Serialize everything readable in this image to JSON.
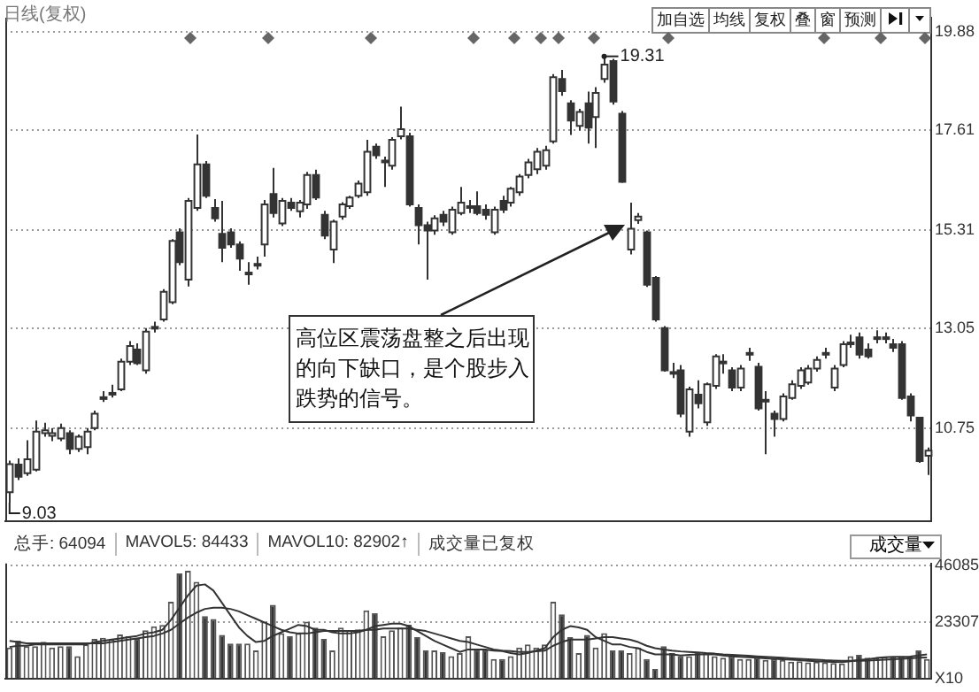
{
  "chart_data": [
    {
      "type": "candlestick",
      "title": "日线(复权)",
      "color": "#333333",
      "categories": [
        null,
        null,
        null,
        null,
        null,
        null,
        null,
        null,
        null,
        null,
        null,
        null,
        null,
        null,
        null,
        null,
        null,
        null,
        null,
        null,
        null,
        null,
        null,
        null,
        null,
        null,
        null,
        null,
        null,
        null,
        null,
        null,
        null,
        null,
        null,
        null,
        null,
        null,
        null,
        null,
        null,
        null,
        null,
        null,
        null,
        null,
        null,
        null,
        null,
        null,
        null,
        null,
        null,
        null,
        null,
        null,
        null,
        null,
        null,
        null,
        null,
        null,
        null,
        null,
        null,
        null,
        null,
        null,
        null,
        null,
        null,
        null,
        null,
        null,
        null,
        null,
        null,
        null,
        null,
        null,
        null,
        null,
        null,
        null,
        null,
        null,
        null,
        null,
        null,
        null,
        null,
        null,
        null,
        null,
        null,
        null,
        null,
        null,
        null,
        null,
        null,
        null,
        null,
        null,
        null,
        null,
        null,
        null,
        null
      ],
      "ohlc": [
        [
          9.27,
          10.0,
          9.03,
          9.92
        ],
        [
          9.91,
          10.05,
          9.55,
          9.63
        ],
        [
          9.71,
          10.47,
          9.65,
          10.03
        ],
        [
          9.79,
          10.92,
          9.75,
          10.67
        ],
        [
          10.63,
          10.87,
          10.55,
          10.7
        ],
        [
          10.57,
          10.75,
          10.45,
          10.63
        ],
        [
          10.51,
          10.85,
          10.45,
          10.75
        ],
        [
          10.63,
          10.7,
          10.15,
          10.27
        ],
        [
          10.27,
          10.6,
          10.2,
          10.55
        ],
        [
          10.31,
          10.75,
          10.15,
          10.67
        ],
        [
          10.75,
          11.15,
          10.7,
          11.08
        ],
        [
          11.42,
          11.6,
          11.35,
          11.46
        ],
        [
          11.52,
          11.75,
          11.45,
          11.56
        ],
        [
          11.64,
          12.35,
          11.6,
          12.28
        ],
        [
          12.28,
          12.75,
          12.2,
          12.64
        ],
        [
          12.56,
          12.7,
          12.2,
          12.24
        ],
        [
          12.08,
          13.05,
          12.0,
          12.97
        ],
        [
          13.04,
          13.2,
          12.95,
          13.08
        ],
        [
          13.25,
          13.95,
          13.2,
          13.89
        ],
        [
          13.65,
          15.1,
          13.6,
          15.06
        ],
        [
          15.26,
          15.35,
          14.5,
          14.57
        ],
        [
          14.17,
          16.05,
          14.01,
          15.98
        ],
        [
          15.82,
          17.51,
          15.75,
          16.82
        ],
        [
          16.82,
          16.9,
          16.05,
          16.1
        ],
        [
          15.82,
          16.02,
          15.5,
          15.58
        ],
        [
          15.22,
          15.98,
          14.57,
          14.9
        ],
        [
          15.26,
          15.35,
          14.9,
          14.98
        ],
        [
          14.98,
          15.05,
          14.37,
          14.65
        ],
        [
          14.29,
          14.57,
          14.05,
          14.33
        ],
        [
          14.49,
          14.7,
          14.4,
          14.53
        ],
        [
          14.98,
          16.0,
          14.7,
          15.9
        ],
        [
          16.14,
          16.74,
          15.6,
          15.7
        ],
        [
          15.46,
          16.05,
          15.4,
          15.98
        ],
        [
          15.94,
          16.05,
          15.75,
          15.82
        ],
        [
          15.74,
          16.0,
          15.6,
          15.94
        ],
        [
          15.9,
          16.65,
          15.8,
          16.58
        ],
        [
          16.58,
          16.7,
          16.0,
          16.06
        ],
        [
          15.66,
          15.75,
          15.1,
          15.18
        ],
        [
          14.86,
          15.55,
          14.55,
          15.5
        ],
        [
          15.62,
          15.95,
          15.55,
          15.9
        ],
        [
          15.86,
          16.1,
          15.8,
          16.06
        ],
        [
          16.1,
          16.45,
          16.05,
          16.38
        ],
        [
          16.18,
          17.39,
          16.1,
          17.11
        ],
        [
          17.23,
          17.3,
          16.95,
          17.03
        ],
        [
          16.87,
          17.0,
          16.3,
          16.91
        ],
        [
          16.79,
          17.45,
          16.7,
          17.39
        ],
        [
          17.47,
          18.15,
          17.4,
          17.63
        ],
        [
          17.47,
          17.55,
          15.85,
          15.9
        ],
        [
          15.82,
          15.9,
          14.98,
          15.42
        ],
        [
          15.42,
          15.5,
          14.17,
          15.3
        ],
        [
          15.3,
          15.65,
          15.2,
          15.58
        ],
        [
          15.66,
          15.75,
          15.4,
          15.5
        ],
        [
          15.26,
          15.85,
          15.2,
          15.78
        ],
        [
          15.7,
          16.3,
          15.65,
          15.94
        ],
        [
          15.82,
          16.0,
          15.7,
          15.86
        ],
        [
          15.86,
          16.2,
          15.65,
          15.7
        ],
        [
          15.78,
          15.9,
          15.55,
          15.66
        ],
        [
          15.26,
          15.85,
          15.2,
          15.78
        ],
        [
          15.98,
          16.1,
          15.7,
          15.78
        ],
        [
          15.94,
          16.3,
          15.85,
          16.26
        ],
        [
          16.18,
          16.6,
          16.1,
          16.54
        ],
        [
          16.58,
          16.95,
          16.5,
          16.87
        ],
        [
          16.71,
          17.2,
          16.6,
          17.11
        ],
        [
          16.79,
          17.25,
          16.7,
          17.15
        ],
        [
          17.35,
          18.9,
          17.3,
          18.83
        ],
        [
          18.79,
          19.0,
          18.4,
          18.51
        ],
        [
          18.23,
          18.3,
          17.5,
          17.83
        ],
        [
          17.71,
          18.1,
          17.6,
          18.03
        ],
        [
          18.23,
          18.5,
          17.3,
          17.67
        ],
        [
          17.91,
          18.6,
          17.2,
          18.47
        ],
        [
          18.79,
          19.31,
          18.7,
          19.12
        ],
        [
          19.2,
          19.25,
          18.2,
          18.27
        ],
        [
          17.99,
          18.05,
          16.4,
          16.42
        ],
        [
          14.86,
          15.94,
          14.75,
          15.34
        ],
        [
          15.54,
          15.7,
          15.45,
          15.62
        ],
        [
          15.26,
          15.3,
          14.0,
          14.05
        ],
        [
          14.21,
          14.25,
          13.2,
          13.25
        ],
        [
          13.05,
          13.1,
          12.05,
          12.08
        ],
        [
          12.04,
          12.25,
          11.9,
          12.0
        ],
        [
          12.08,
          12.2,
          11.0,
          11.08
        ],
        [
          10.67,
          11.7,
          10.55,
          11.64
        ],
        [
          11.52,
          11.85,
          11.2,
          11.32
        ],
        [
          10.88,
          11.8,
          10.8,
          11.76
        ],
        [
          11.72,
          12.45,
          11.65,
          12.4
        ],
        [
          12.24,
          12.45,
          12.0,
          12.28
        ],
        [
          12.08,
          12.15,
          11.6,
          11.68
        ],
        [
          11.68,
          12.2,
          11.6,
          12.12
        ],
        [
          12.44,
          12.6,
          12.3,
          12.48
        ],
        [
          12.16,
          12.25,
          11.15,
          11.2
        ],
        [
          11.36,
          11.6,
          10.15,
          11.4
        ],
        [
          11.08,
          11.15,
          10.55,
          10.96
        ],
        [
          10.96,
          11.55,
          10.9,
          11.48
        ],
        [
          11.44,
          11.85,
          11.4,
          11.76
        ],
        [
          11.72,
          12.15,
          11.65,
          12.08
        ],
        [
          11.8,
          12.2,
          11.75,
          12.12
        ],
        [
          12.12,
          12.4,
          12.05,
          12.32
        ],
        [
          12.44,
          12.6,
          12.35,
          12.48
        ],
        [
          11.68,
          12.2,
          11.6,
          12.12
        ],
        [
          12.2,
          12.75,
          12.15,
          12.68
        ],
        [
          12.68,
          12.9,
          12.6,
          12.72
        ],
        [
          12.84,
          12.95,
          12.35,
          12.44
        ],
        [
          12.56,
          12.7,
          12.35,
          12.4
        ],
        [
          12.8,
          13.0,
          12.7,
          12.84
        ],
        [
          12.8,
          12.95,
          12.7,
          12.84
        ],
        [
          12.68,
          12.8,
          12.5,
          12.6
        ],
        [
          12.68,
          12.75,
          11.4,
          11.44
        ],
        [
          11.48,
          11.55,
          10.9,
          11.04
        ],
        [
          10.99,
          11.0,
          9.95,
          9.99
        ],
        [
          10.11,
          10.3,
          9.67,
          10.23
        ]
      ],
      "ylim": [
        8.6,
        20.2
      ],
      "yticks": [
        10.75,
        13.05,
        15.31,
        17.61,
        19.88
      ],
      "grid": "y",
      "tick_labels": "y",
      "annotations": [
        "高位区震荡盘整之后出现的向下缺口，是个股步入跌势的信号。",
        "19.31",
        "9.03",
        "加自选",
        "均线",
        "复权",
        "叠",
        "窗",
        "预测"
      ]
    },
    {
      "type": "bar",
      "categories": [
        null,
        null,
        null,
        null,
        null,
        null,
        null,
        null,
        null,
        null,
        null,
        null,
        null,
        null,
        null,
        null,
        null,
        null,
        null,
        null,
        null,
        null,
        null,
        null,
        null,
        null,
        null,
        null,
        null,
        null,
        null,
        null,
        null,
        null,
        null,
        null,
        null,
        null,
        null,
        null,
        null,
        null,
        null,
        null,
        null,
        null,
        null,
        null,
        null,
        null,
        null,
        null,
        null,
        null,
        null,
        null,
        null,
        null,
        null,
        null,
        null,
        null,
        null,
        null,
        null,
        null,
        null,
        null,
        null,
        null,
        null,
        null,
        null,
        null,
        null,
        null,
        null,
        null,
        null,
        null,
        null,
        null,
        null,
        null,
        null,
        null,
        null,
        null,
        null,
        null,
        null,
        null,
        null,
        null,
        null,
        null,
        null,
        null,
        null,
        null,
        null,
        null,
        null,
        null,
        null,
        null,
        null,
        null,
        null
      ],
      "series": [
        {
          "type": "bar",
          "color": "#555555",
          "colors": [
            "#ffffff",
            "#333333",
            "#ffffff",
            "#ffffff",
            "#ffffff",
            "#ffffff",
            "#ffffff",
            "#333333",
            "#ffffff",
            "#ffffff",
            "#ffffff",
            "#ffffff",
            "#ffffff",
            "#ffffff",
            "#ffffff",
            "#333333",
            "#ffffff",
            "#ffffff",
            "#ffffff",
            "#ffffff",
            "#333333",
            "#ffffff",
            "#ffffff",
            "#333333",
            "#333333",
            "#333333",
            "#333333",
            "#333333",
            "#ffffff",
            "#ffffff",
            "#ffffff",
            "#333333",
            "#ffffff",
            "#333333",
            "#ffffff",
            "#ffffff",
            "#333333",
            "#333333",
            "#ffffff",
            "#ffffff",
            "#ffffff",
            "#ffffff",
            "#ffffff",
            "#333333",
            "#ffffff",
            "#ffffff",
            "#ffffff",
            "#333333",
            "#333333",
            "#333333",
            "#ffffff",
            "#333333",
            "#ffffff",
            "#ffffff",
            "#ffffff",
            "#333333",
            "#333333",
            "#ffffff",
            "#333333",
            "#ffffff",
            "#ffffff",
            "#ffffff",
            "#ffffff",
            "#ffffff",
            "#ffffff",
            "#333333",
            "#333333",
            "#ffffff",
            "#333333",
            "#ffffff",
            "#ffffff",
            "#333333",
            "#333333",
            "#ffffff",
            "#ffffff",
            "#333333",
            "#333333",
            "#333333",
            "#333333",
            "#333333",
            "#ffffff",
            "#333333",
            "#ffffff",
            "#ffffff",
            "#ffffff",
            "#333333",
            "#ffffff",
            "#ffffff",
            "#333333",
            "#ffffff",
            "#333333",
            "#ffffff",
            "#ffffff",
            "#ffffff",
            "#ffffff",
            "#ffffff",
            "#ffffff",
            "#ffffff",
            "#ffffff",
            "#ffffff",
            "#333333",
            "#333333",
            "#ffffff",
            "#ffffff",
            "#333333",
            "#333333",
            "#333333",
            "#333333",
            "#ffffff"
          ],
          "values": [
            12800,
            15600,
            13300,
            13300,
            15100,
            12800,
            13300,
            13300,
            9300,
            14000,
            16300,
            16700,
            16300,
            18100,
            17400,
            16300,
            19800,
            21400,
            22000,
            31400,
            43000,
            44000,
            39500,
            25600,
            24400,
            17900,
            14400,
            14400,
            14400,
            11600,
            23300,
            30200,
            18600,
            17400,
            18600,
            23300,
            20900,
            16300,
            11600,
            20900,
            19800,
            20200,
            27900,
            26700,
            17400,
            19800,
            20900,
            22100,
            17000,
            11600,
            11600,
            10900,
            9300,
            10500,
            17400,
            11600,
            11600,
            8100,
            8100,
            9300,
            12800,
            14000,
            12800,
            14000,
            31400,
            26300,
            17000,
            10500,
            17900,
            12800,
            18600,
            11600,
            11600,
            10500,
            12800,
            8100,
            4000,
            13300,
            10500,
            9300,
            9300,
            10500,
            10500,
            9300,
            8600,
            9300,
            8100,
            8100,
            8800,
            7700,
            8100,
            7700,
            7000,
            7200,
            6700,
            7000,
            6700,
            6500,
            6300,
            9300,
            9800,
            8600,
            8600,
            9100,
            9100,
            9300,
            9300,
            11600,
            8100
          ]
        },
        {
          "type": "line",
          "color": "#333333",
          "values": [
            13000,
            13500,
            13500,
            14000,
            14000,
            14000,
            14000,
            14000,
            14000,
            14000,
            15000,
            15500,
            16000,
            16500,
            17000,
            17500,
            18500,
            19000,
            20000,
            24000,
            29000,
            34000,
            38000,
            38500,
            36000,
            31000,
            26000,
            21000,
            17500,
            15000,
            15500,
            17500,
            19000,
            20500,
            22000,
            21500,
            20000,
            20000,
            19000,
            18500,
            18500,
            19000,
            20000,
            21500,
            22000,
            22500,
            22500,
            21500,
            19500,
            17500,
            15500,
            14000,
            12500,
            11000,
            12000,
            12000,
            12000,
            11500,
            11300,
            10500,
            10000,
            10500,
            11500,
            12500,
            17000,
            20000,
            21500,
            21000,
            20000,
            17000,
            15500,
            14000,
            14000,
            13000,
            12500,
            11000,
            10000,
            10000,
            10000,
            9500,
            9800,
            10000,
            10000,
            10000,
            9500,
            9200,
            9000,
            8800,
            8600,
            8400,
            8200,
            8000,
            7800,
            7600,
            7400,
            7200,
            7000,
            6900,
            6800,
            7200,
            7700,
            8000,
            8500,
            8800,
            9000,
            9000,
            9100,
            9500,
            10000
          ]
        },
        {
          "type": "line",
          "color": "#333333",
          "values": [
            15500,
            15000,
            14500,
            14500,
            14500,
            14500,
            14500,
            14500,
            14500,
            14500,
            14500,
            14500,
            15000,
            15500,
            16000,
            16500,
            17000,
            17500,
            18500,
            20000,
            22500,
            25000,
            27000,
            28500,
            29000,
            29000,
            28500,
            27500,
            26000,
            24500,
            23000,
            21500,
            20000,
            19000,
            18500,
            18500,
            19000,
            19500,
            19500,
            19500,
            19500,
            19500,
            20000,
            20000,
            20500,
            20500,
            20500,
            20500,
            20000,
            19500,
            18500,
            17500,
            16500,
            15500,
            15000,
            14000,
            13000,
            12000,
            11500,
            11300,
            11000,
            11000,
            11200,
            11500,
            13500,
            15000,
            16000,
            16000,
            16000,
            16500,
            17000,
            17000,
            16500,
            16000,
            15000,
            13500,
            12500,
            12000,
            11500,
            11200,
            11000,
            10800,
            10500,
            10300,
            10000,
            9800,
            9600,
            9400,
            9200,
            9000,
            8800,
            8600,
            8400,
            8200,
            8000,
            7800,
            7600,
            7500,
            7400,
            7400,
            7400,
            7500,
            7600,
            7800,
            8000,
            8200,
            8400,
            8600,
            8700
          ]
        }
      ],
      "ylim": [
        0,
        47000
      ],
      "yticks": [
        {
          "value": 0,
          "label": "X10"
        },
        23307,
        46085
      ],
      "grid": "y",
      "tick_labels": "y",
      "annotations": [
        "总手: 64094",
        "MAVOL5: 84433",
        "MAVOL10: 82902↑",
        "成交量已复权",
        "成交量"
      ]
    }
  ]
}
